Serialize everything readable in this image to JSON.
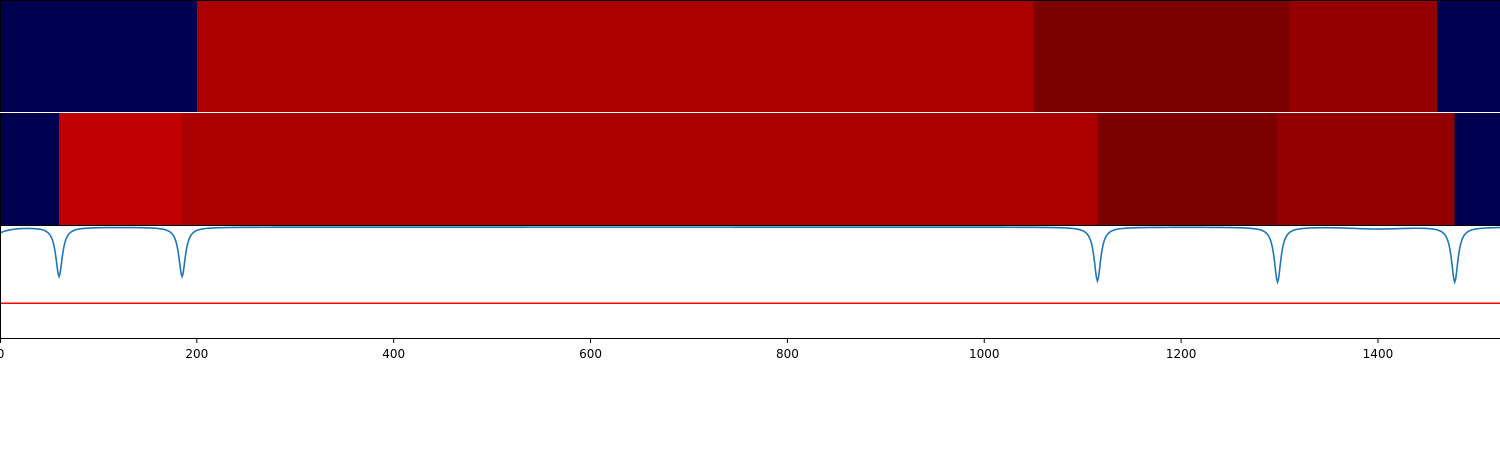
{
  "chart_data": [
    {
      "type": "heatmap",
      "title": "",
      "xlim": [
        0,
        1524
      ],
      "segments": [
        {
          "x0": 0,
          "x1": 200,
          "color": "#000050"
        },
        {
          "x0": 200,
          "x1": 1050,
          "color": "#aa0000"
        },
        {
          "x0": 1050,
          "x1": 1310,
          "color": "#7d0000"
        },
        {
          "x0": 1310,
          "x1": 1460,
          "color": "#940000"
        },
        {
          "x0": 1460,
          "x1": 1524,
          "color": "#000050"
        }
      ]
    },
    {
      "type": "heatmap",
      "title": "",
      "xlim": [
        0,
        1524
      ],
      "segments": [
        {
          "x0": 0,
          "x1": 60,
          "color": "#000050"
        },
        {
          "x0": 60,
          "x1": 185,
          "color": "#c00000"
        },
        {
          "x0": 185,
          "x1": 1115,
          "color": "#aa0000"
        },
        {
          "x0": 1115,
          "x1": 1298,
          "color": "#7d0000"
        },
        {
          "x0": 1298,
          "x1": 1478,
          "color": "#940000"
        },
        {
          "x0": 1478,
          "x1": 1524,
          "color": "#000050"
        }
      ]
    },
    {
      "type": "line",
      "title": "",
      "xlabel": "",
      "ylabel": "",
      "xlim": [
        0,
        1524
      ],
      "ylim": [
        0,
        1
      ],
      "series": [
        {
          "color": "#1f77b4",
          "baseline": 0.99,
          "start": {
            "x": 0,
            "y": 0.94
          },
          "dips": [
            {
              "x": 60,
              "min": 0.55
            },
            {
              "x": 185,
              "min": 0.55
            },
            {
              "x": 1115,
              "min": 0.51
            },
            {
              "x": 1298,
              "min": 0.5
            },
            {
              "x": 1478,
              "min": 0.5
            }
          ],
          "shallow_dips": [
            {
              "x": 1400,
              "min": 0.975
            }
          ]
        }
      ],
      "threshold": {
        "y": 0.31,
        "color": "#ff0000"
      },
      "x_ticks": [
        0,
        200,
        400,
        600,
        800,
        1000,
        1200,
        1400
      ],
      "x_tick_labels": [
        "0",
        "200",
        "400",
        "600",
        "800",
        "1000",
        "1200",
        "1400"
      ]
    }
  ],
  "colors": {
    "line": "#1f77b4",
    "threshold": "#ff0000",
    "axis": "#000000",
    "separator": "#ffffff"
  }
}
